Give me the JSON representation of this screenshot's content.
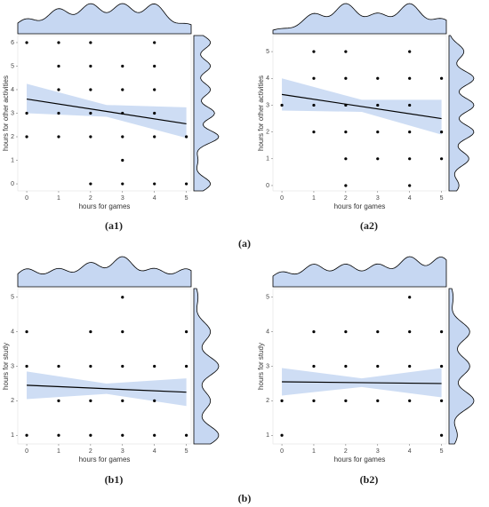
{
  "groups": [
    "(a)",
    "(b)"
  ],
  "chart_data": [
    {
      "type": "scatter",
      "label": "(a1)",
      "x_label": "hours for games",
      "y_label": "hours for other activities",
      "xlim": [
        -0.28,
        5.15
      ],
      "ylim": [
        -0.3,
        6.3
      ],
      "xticks": [
        0,
        1,
        2,
        3,
        4,
        5
      ],
      "yticks": [
        0,
        1,
        2,
        3,
        4,
        5,
        6
      ],
      "point_color": "#000000",
      "band_color": "#c6d7f2",
      "x": [
        0,
        1,
        2,
        4,
        1,
        2,
        3,
        4,
        1,
        2,
        3,
        4,
        0,
        1,
        2,
        3,
        4,
        0,
        1,
        2,
        3,
        4,
        5,
        3,
        2,
        3,
        4,
        5
      ],
      "values": [
        6,
        6,
        6,
        6,
        5,
        5,
        5,
        5,
        4,
        4,
        4,
        4,
        3,
        3,
        3,
        3,
        3,
        2,
        2,
        2,
        2,
        2,
        2,
        1,
        0,
        0,
        0,
        0
      ],
      "fit_x": [
        0,
        5
      ],
      "fit": [
        3.6,
        2.55
      ],
      "ci_x": [
        0,
        2.5,
        5
      ],
      "ci_lower": [
        3.0,
        2.85,
        1.95
      ],
      "ci_upper": [
        4.25,
        3.35,
        3.25
      ]
    },
    {
      "type": "scatter",
      "label": "(a2)",
      "x_label": "hours for games",
      "y_label": "hours for other activities",
      "xlim": [
        -0.28,
        5.15
      ],
      "ylim": [
        -0.2,
        5.6
      ],
      "xticks": [
        0,
        1,
        2,
        3,
        4,
        5
      ],
      "yticks": [
        0,
        1,
        2,
        3,
        4,
        5
      ],
      "point_color": "#000000",
      "band_color": "#c6d7f2",
      "x": [
        1,
        2,
        4,
        1,
        2,
        3,
        4,
        5,
        0,
        1,
        2,
        3,
        4,
        1,
        2,
        3,
        4,
        5,
        2,
        3,
        4,
        5,
        2,
        4
      ],
      "values": [
        5,
        5,
        5,
        4,
        4,
        4,
        4,
        4,
        3,
        3,
        3,
        3,
        3,
        2,
        2,
        2,
        2,
        2,
        1,
        1,
        1,
        1,
        0,
        0
      ],
      "fit_x": [
        0,
        5
      ],
      "fit": [
        3.4,
        2.5
      ],
      "ci_x": [
        0,
        2.5,
        5
      ],
      "ci_lower": [
        2.8,
        2.75,
        1.9
      ],
      "ci_upper": [
        4.0,
        3.2,
        3.2
      ]
    },
    {
      "type": "scatter",
      "label": "(b1)",
      "x_label": "hours for games",
      "y_label": "hours for study",
      "xlim": [
        -0.28,
        5.15
      ],
      "ylim": [
        0.75,
        5.25
      ],
      "xticks": [
        0,
        1,
        2,
        3,
        4,
        5
      ],
      "yticks": [
        1,
        2,
        3,
        4,
        5
      ],
      "point_color": "#000000",
      "band_color": "#c6d7f2",
      "x": [
        3,
        0,
        2,
        3,
        5,
        0,
        1,
        2,
        3,
        4,
        5,
        1,
        2,
        3,
        4,
        0,
        1,
        2,
        3,
        4,
        5
      ],
      "values": [
        5,
        4,
        4,
        4,
        4,
        3,
        3,
        3,
        3,
        3,
        3,
        2,
        2,
        2,
        2,
        1,
        1,
        1,
        1,
        1,
        1
      ],
      "fit_x": [
        0,
        5
      ],
      "fit": [
        2.45,
        2.25
      ],
      "ci_x": [
        0,
        2.5,
        5
      ],
      "ci_lower": [
        2.05,
        2.2,
        1.85
      ],
      "ci_upper": [
        2.85,
        2.5,
        2.65
      ]
    },
    {
      "type": "scatter",
      "label": "(b2)",
      "x_label": "hours for games",
      "y_label": "hours for study",
      "xlim": [
        -0.28,
        5.15
      ],
      "ylim": [
        0.75,
        5.25
      ],
      "xticks": [
        0,
        1,
        2,
        3,
        4,
        5
      ],
      "yticks": [
        1,
        2,
        3,
        4,
        5
      ],
      "point_color": "#000000",
      "band_color": "#c6d7f2",
      "x": [
        4,
        1,
        2,
        3,
        4,
        5,
        1,
        2,
        3,
        4,
        5,
        0,
        1,
        2,
        3,
        4,
        5,
        0,
        5
      ],
      "values": [
        5,
        4,
        4,
        4,
        4,
        4,
        3,
        3,
        3,
        3,
        3,
        2,
        2,
        2,
        2,
        2,
        2,
        1,
        1
      ],
      "fit_x": [
        0,
        5
      ],
      "fit": [
        2.55,
        2.5
      ],
      "ci_x": [
        0,
        2.5,
        5
      ],
      "ci_lower": [
        2.15,
        2.4,
        2.1
      ],
      "ci_upper": [
        2.95,
        2.65,
        2.95
      ]
    }
  ]
}
